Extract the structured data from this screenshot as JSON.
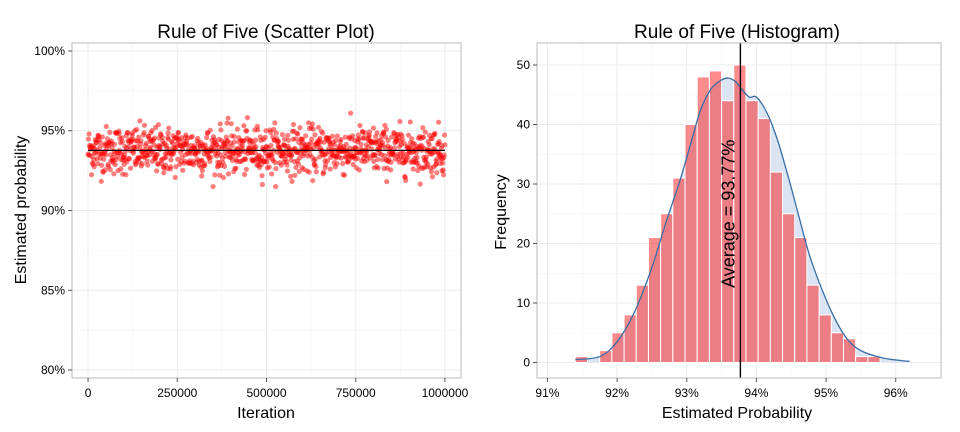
{
  "chart_data": [
    {
      "type": "scatter",
      "title": "Rule of Five (Scatter Plot)",
      "xlabel": "Iteration",
      "ylabel": "Estimated probability",
      "xlim": [
        -45000,
        1045000
      ],
      "ylim": [
        0.795,
        1.005
      ],
      "x_ticks": [
        0,
        250000,
        500000,
        750000,
        1000000
      ],
      "x_tick_labels": [
        "0",
        "250000",
        "500000",
        "750000",
        "1000000"
      ],
      "y_ticks": [
        0.8,
        0.85,
        0.9,
        0.95,
        1.0
      ],
      "y_tick_labels": [
        "80%",
        "85%",
        "90%",
        "95%",
        "100%"
      ],
      "grid": true,
      "point_color": "#ff0000",
      "point_alpha": 0.5,
      "reference_line": {
        "y": 0.9377,
        "color": "#000000"
      },
      "series": [
        {
          "n_points": 1000,
          "x_min": 0,
          "x_max": 1000000,
          "y_mean": 0.9377,
          "y_sd": 0.0074,
          "y_min": 0.915,
          "y_max": 0.961
        }
      ]
    },
    {
      "type": "bar",
      "title": "Rule of Five (Histogram)",
      "xlabel": "Estimated Probability",
      "ylabel": "Frequency",
      "xlim": [
        0.9085,
        0.9665
      ],
      "ylim": [
        -2.6,
        53.7
      ],
      "x_ticks": [
        0.91,
        0.92,
        0.93,
        0.94,
        0.95,
        0.96
      ],
      "x_tick_labels": [
        "91%",
        "92%",
        "93%",
        "94%",
        "95%",
        "96%"
      ],
      "y_ticks": [
        0,
        10,
        20,
        30,
        40,
        50
      ],
      "y_tick_labels": [
        "0",
        "10",
        "20",
        "30",
        "40",
        "50"
      ],
      "grid": true,
      "bin_width": 0.00175,
      "bin_start": 0.914,
      "values": [
        1,
        0,
        2,
        5,
        8,
        13,
        21,
        25,
        31,
        40,
        48,
        49,
        44,
        50,
        44,
        41,
        32,
        25,
        21,
        13,
        8,
        5,
        4,
        1,
        1
      ],
      "bar_color": "#ff0000",
      "bar_alpha": 0.45,
      "density_color": "#3a6ea5",
      "density_fill": "#dbe4f2",
      "density_curve_x": [
        0.914,
        0.9175,
        0.92,
        0.9225,
        0.925,
        0.927,
        0.929,
        0.9305,
        0.932,
        0.9335,
        0.935,
        0.936,
        0.937,
        0.938,
        0.939,
        0.94,
        0.9415,
        0.943,
        0.9445,
        0.946,
        0.9475,
        0.949,
        0.951,
        0.953,
        0.955,
        0.958,
        0.961,
        0.962
      ],
      "density_curve_y": [
        0.5,
        1.0,
        3.5,
        8.5,
        16.0,
        23.5,
        30.5,
        36.5,
        42.5,
        46.0,
        47.5,
        47.8,
        47.2,
        45.8,
        44.6,
        44.6,
        42.0,
        37.5,
        31.5,
        25.0,
        18.5,
        13.5,
        8.0,
        4.0,
        2.0,
        0.8,
        0.3,
        0.2
      ],
      "vline": {
        "x": 0.9377,
        "color": "#000000"
      },
      "annotation": "Average = 93.77%"
    }
  ]
}
